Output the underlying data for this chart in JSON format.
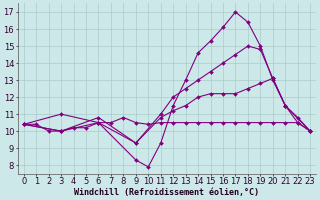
{
  "background_color": "#cce8e8",
  "grid_color": "#aacccc",
  "line_color": "#800080",
  "xlabel": "Windchill (Refroidissement éolien,°C)",
  "xlabel_fontsize": 6.0,
  "tick_fontsize": 6.0,
  "ylim": [
    7.5,
    17.5
  ],
  "xlim": [
    -0.5,
    23.5
  ],
  "yticks": [
    8,
    9,
    10,
    11,
    12,
    13,
    14,
    15,
    16,
    17
  ],
  "xticks": [
    0,
    1,
    2,
    3,
    4,
    5,
    6,
    7,
    8,
    9,
    10,
    11,
    12,
    13,
    14,
    15,
    16,
    17,
    18,
    19,
    20,
    21,
    22,
    23
  ],
  "series": [
    {
      "x": [
        0,
        1,
        2,
        3,
        4,
        5,
        6,
        7,
        8,
        9,
        10,
        11,
        12,
        13,
        14,
        15,
        16,
        17,
        18,
        19,
        20,
        21,
        22,
        23
      ],
      "y": [
        10.4,
        10.4,
        10.0,
        10.0,
        10.2,
        10.2,
        10.5,
        10.5,
        10.8,
        10.5,
        10.4,
        10.5,
        10.5,
        10.5,
        10.5,
        10.5,
        10.5,
        10.5,
        10.5,
        10.5,
        10.5,
        10.5,
        10.5,
        10.0
      ],
      "marker": "D",
      "markersize": 2.0,
      "linewidth": 0.8
    },
    {
      "x": [
        0,
        3,
        6,
        9,
        10,
        11,
        12,
        13,
        14,
        15,
        16,
        17,
        18,
        19,
        20,
        21,
        22,
        23
      ],
      "y": [
        10.4,
        10.0,
        10.5,
        8.3,
        7.9,
        9.3,
        11.5,
        13.0,
        14.6,
        15.3,
        16.1,
        17.0,
        16.4,
        15.0,
        13.0,
        11.5,
        10.5,
        10.0
      ],
      "marker": "D",
      "markersize": 2.0,
      "linewidth": 0.8
    },
    {
      "x": [
        0,
        3,
        6,
        9,
        11,
        12,
        13,
        14,
        15,
        16,
        17,
        18,
        19,
        20,
        21,
        23
      ],
      "y": [
        10.4,
        10.0,
        10.8,
        9.3,
        11.0,
        12.0,
        12.5,
        13.0,
        13.5,
        14.0,
        14.5,
        15.0,
        14.8,
        13.1,
        11.5,
        10.0
      ],
      "marker": "D",
      "markersize": 2.0,
      "linewidth": 0.8
    },
    {
      "x": [
        0,
        3,
        6,
        9,
        11,
        12,
        13,
        14,
        15,
        16,
        17,
        18,
        19,
        20,
        21,
        22,
        23
      ],
      "y": [
        10.4,
        11.0,
        10.5,
        9.3,
        10.8,
        11.2,
        11.5,
        12.0,
        12.2,
        12.2,
        12.2,
        12.5,
        12.8,
        13.1,
        11.5,
        10.8,
        10.0
      ],
      "marker": "D",
      "markersize": 2.0,
      "linewidth": 0.8
    }
  ]
}
